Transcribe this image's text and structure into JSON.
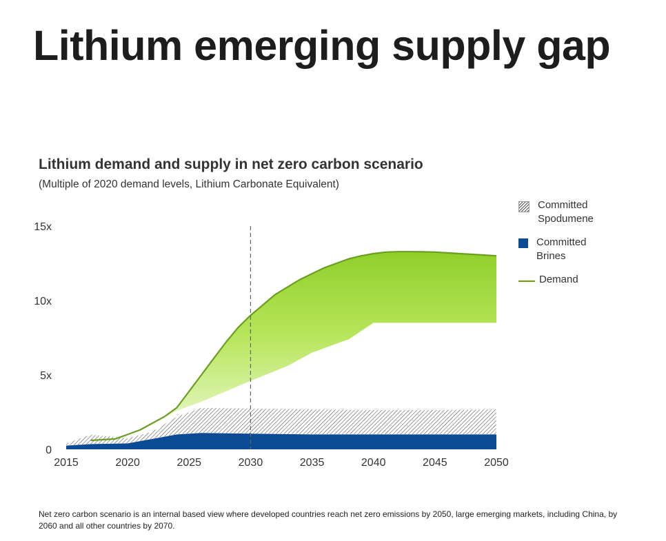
{
  "page": {
    "title": "Lithium emerging supply gap",
    "footnote": "Net zero carbon scenario is an internal based view where developed countries reach net zero emissions by 2050, large emerging markets, including China, by 2060 and all other countries by 2070."
  },
  "chart_data": {
    "type": "area",
    "title": "Lithium demand and supply in net zero carbon scenario",
    "subtitle": "(Multiple of 2020 demand levels, Lithium Carbonate Equivalent)",
    "xlabel": "",
    "ylabel": "",
    "xlim": [
      2015,
      2050
    ],
    "ylim": [
      0,
      15
    ],
    "xticks": [
      2015,
      2020,
      2025,
      2030,
      2035,
      2040,
      2045,
      2050
    ],
    "yticks": [
      0,
      5,
      10,
      15
    ],
    "ytick_labels": [
      "0",
      "5x",
      "10x",
      "15x"
    ],
    "reference_line": {
      "x": 2030,
      "style": "dashed"
    },
    "legend_position": "right",
    "series": [
      {
        "name": "Committed Brines",
        "kind": "stacked-area",
        "color": "#0b4a94",
        "x": [
          2015,
          2017,
          2020,
          2022,
          2024,
          2026,
          2030,
          2035,
          2040,
          2045,
          2050
        ],
        "values": [
          0.25,
          0.35,
          0.4,
          0.7,
          1.0,
          1.1,
          1.05,
          1.0,
          1.0,
          1.0,
          1.0
        ]
      },
      {
        "name": "Committed Spodumene",
        "kind": "stacked-area",
        "pattern": "hatch",
        "x": [
          2015,
          2017,
          2020,
          2022,
          2024,
          2026,
          2030,
          2035,
          2040,
          2045,
          2050
        ],
        "values": [
          0.15,
          0.65,
          0.35,
          0.5,
          1.2,
          1.7,
          1.7,
          1.7,
          1.65,
          1.65,
          1.7
        ]
      },
      {
        "name": "Demand",
        "kind": "line",
        "color": "#6b9e1f",
        "x": [
          2017,
          2019,
          2021,
          2023,
          2024,
          2025,
          2026,
          2027,
          2028,
          2029,
          2030,
          2031,
          2032,
          2033,
          2034,
          2035,
          2036,
          2037,
          2038,
          2039,
          2040,
          2041,
          2042,
          2043,
          2044,
          2045,
          2046,
          2047,
          2048,
          2049,
          2050
        ],
        "values": [
          0.6,
          0.7,
          1.3,
          2.2,
          2.8,
          3.9,
          5.0,
          6.1,
          7.2,
          8.2,
          9.0,
          9.7,
          10.4,
          10.9,
          11.4,
          11.8,
          12.2,
          12.5,
          12.8,
          13.0,
          13.15,
          13.25,
          13.28,
          13.28,
          13.27,
          13.25,
          13.2,
          13.15,
          13.1,
          13.05,
          13.0
        ]
      }
    ],
    "gap_band_lower": {
      "x": [
        2017,
        2020,
        2022,
        2024,
        2026,
        2028,
        2030,
        2033,
        2035,
        2038,
        2040,
        2045,
        2050
      ],
      "values": [
        0.6,
        1.0,
        1.7,
        2.6,
        3.2,
        3.9,
        4.6,
        5.6,
        6.5,
        7.4,
        8.5,
        8.5,
        8.5
      ]
    }
  },
  "legend": {
    "items": [
      {
        "label": "Committed\nSpodumene",
        "icon": "hatch-swatch"
      },
      {
        "label": "Committed\nBrines",
        "icon": "square-swatch"
      },
      {
        "label": "Demand",
        "icon": "line-swatch"
      }
    ]
  }
}
